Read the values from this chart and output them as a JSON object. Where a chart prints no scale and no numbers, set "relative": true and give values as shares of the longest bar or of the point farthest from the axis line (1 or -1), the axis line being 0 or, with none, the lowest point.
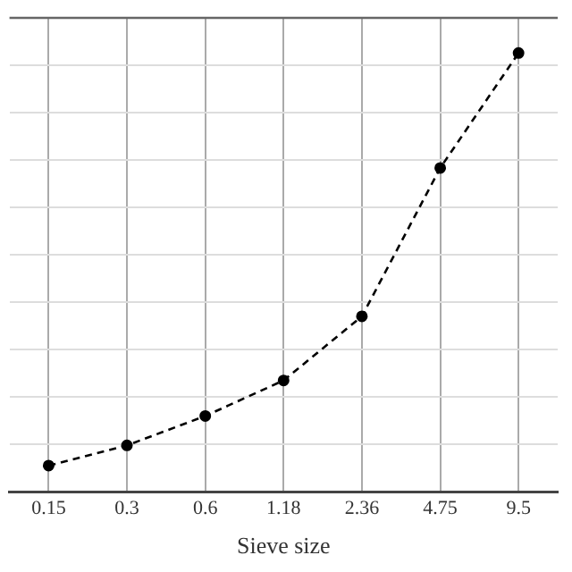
{
  "chart_data": {
    "type": "line",
    "xlabel": "Sieve size",
    "relative": true,
    "categories": [
      "0.15",
      "0.3",
      "0.6",
      "1.18",
      "2.36",
      "4.75",
      "9.5"
    ],
    "series": [
      {
        "color": "#000000",
        "values": [
          0.06,
          0.106,
          0.173,
          0.254,
          0.4,
          0.738,
          1
        ]
      }
    ],
    "grid": true,
    "legend": false,
    "marker": "circle",
    "line_style": "dashed"
  }
}
